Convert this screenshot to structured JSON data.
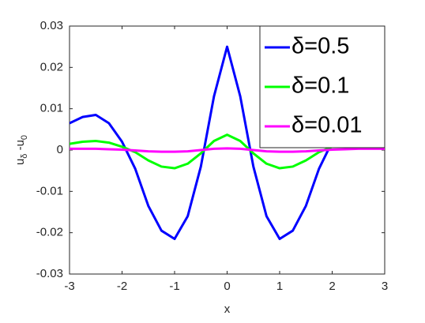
{
  "chart_data": {
    "type": "line",
    "x": [
      -3,
      -2.75,
      -2.5,
      -2.25,
      -2,
      -1.75,
      -1.5,
      -1.25,
      -1,
      -0.75,
      -0.5,
      -0.25,
      0,
      0.25,
      0.5,
      0.75,
      1,
      1.25,
      1.5,
      1.75,
      2,
      2.25,
      2.5,
      2.75,
      3
    ],
    "series": [
      {
        "name": "δ=0.5",
        "color": "#0000ff",
        "values": [
          0.0065,
          0.008,
          0.0085,
          0.0065,
          0.002,
          -0.0045,
          -0.0135,
          -0.0195,
          -0.0215,
          -0.016,
          -0.004,
          0.013,
          0.025,
          0.013,
          -0.004,
          -0.016,
          -0.0215,
          -0.0195,
          -0.0135,
          -0.0045,
          0.002,
          0.0065,
          0.0085,
          0.008,
          0.0065
        ]
      },
      {
        "name": "δ=0.1",
        "color": "#00ff00",
        "values": [
          0.0015,
          0.002,
          0.0022,
          0.0018,
          0.0008,
          -0.0005,
          -0.0025,
          -0.004,
          -0.0044,
          -0.0033,
          -0.0008,
          0.0022,
          0.0037,
          0.0022,
          -0.0008,
          -0.0033,
          -0.0044,
          -0.004,
          -0.0025,
          -0.0005,
          0.0008,
          0.0018,
          0.0022,
          0.002,
          0.0015
        ]
      },
      {
        "name": "δ=0.01",
        "color": "#ff00ff",
        "values": [
          0.0003,
          0.0003,
          0.0003,
          0.0002,
          0.0001,
          -0.0001,
          -0.0003,
          -0.0004,
          -0.0004,
          -0.0003,
          0,
          0.0003,
          0.0004,
          0.0003,
          0,
          -0.0003,
          -0.0004,
          -0.0004,
          -0.0003,
          -0.0001,
          0.0001,
          0.0002,
          0.0003,
          0.0003,
          0.0003
        ]
      }
    ],
    "xlabel": "x",
    "ylabel": [
      "u",
      "δ",
      " -u",
      "0"
    ],
    "xlim": [
      -3,
      3
    ],
    "ylim": [
      -0.03,
      0.03
    ],
    "xticks": [
      -3,
      -2,
      -1,
      0,
      1,
      2,
      3
    ],
    "yticks": [
      -0.03,
      -0.02,
      -0.01,
      0,
      0.01,
      0.02,
      0.03
    ],
    "legend": "top-right"
  }
}
